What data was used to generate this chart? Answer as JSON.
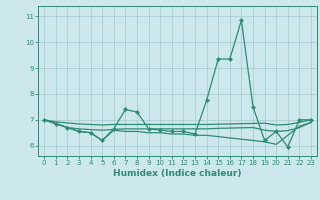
{
  "xlabel": "Humidex (Indice chaleur)",
  "x_values": [
    0,
    1,
    2,
    3,
    4,
    5,
    6,
    7,
    8,
    9,
    10,
    11,
    12,
    13,
    14,
    15,
    16,
    17,
    18,
    19,
    20,
    21,
    22,
    23
  ],
  "line1": [
    7.0,
    6.85,
    6.7,
    6.55,
    6.5,
    6.2,
    6.65,
    7.4,
    7.3,
    6.65,
    6.6,
    6.55,
    6.55,
    6.45,
    7.75,
    9.35,
    9.35,
    10.85,
    7.5,
    6.2,
    6.55,
    5.95,
    7.0,
    7.0
  ],
  "line2": [
    7.0,
    6.85,
    6.7,
    6.55,
    6.5,
    6.2,
    6.6,
    6.55,
    6.55,
    6.5,
    6.5,
    6.45,
    6.45,
    6.4,
    6.4,
    6.35,
    6.3,
    6.25,
    6.2,
    6.15,
    6.05,
    6.4,
    6.75,
    6.9
  ],
  "line3": [
    7.0,
    6.85,
    6.7,
    6.65,
    6.62,
    6.6,
    6.63,
    6.65,
    6.65,
    6.65,
    6.65,
    6.65,
    6.65,
    6.65,
    6.65,
    6.67,
    6.68,
    6.69,
    6.7,
    6.6,
    6.55,
    6.58,
    6.7,
    6.9
  ],
  "line4": [
    7.0,
    6.92,
    6.88,
    6.84,
    6.82,
    6.8,
    6.82,
    6.82,
    6.82,
    6.82,
    6.82,
    6.82,
    6.82,
    6.82,
    6.82,
    6.83,
    6.84,
    6.85,
    6.86,
    6.87,
    6.8,
    6.82,
    6.9,
    7.0
  ],
  "line_color": "#2e8b74",
  "bg_color": "#cce8ec",
  "grid_color": "#aacdd4",
  "ylim": [
    5.6,
    11.4
  ],
  "yticks": [
    6,
    7,
    8,
    9,
    10,
    11
  ],
  "marker": "D",
  "marker_size": 2.5,
  "linewidth": 0.9
}
